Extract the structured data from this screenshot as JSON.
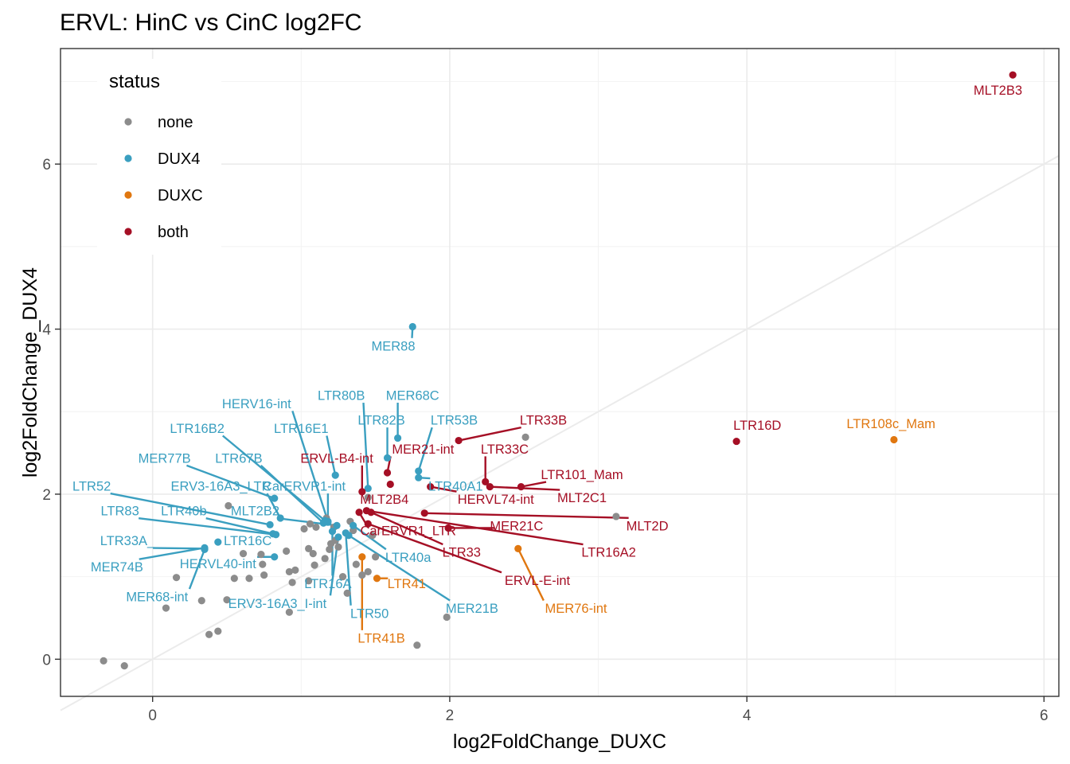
{
  "chart_data": {
    "type": "scatter",
    "title": "ERVL: HinC vs CinC log2FC",
    "xlabel": "log2FoldChange_DUXC",
    "ylabel": "log2FoldChange_DUX4",
    "xlim": [
      -0.62,
      6.1
    ],
    "ylim": [
      -0.45,
      7.4
    ],
    "x_ticks": [
      0,
      2,
      4,
      6
    ],
    "y_ticks": [
      0,
      2,
      4,
      6
    ],
    "x_tick_labels": [
      "0",
      "2",
      "4",
      "6"
    ],
    "y_tick_labels": [
      "0",
      "2",
      "4",
      "6"
    ],
    "grid": true,
    "reference_line": {
      "slope": 1,
      "intercept": 0,
      "color": "#ebebeb"
    },
    "legend": {
      "title": "status",
      "position": "top-left inside",
      "entries": [
        {
          "label": "none",
          "color": "#8c8c8c"
        },
        {
          "label": "DUX4",
          "color": "#3a9fc0"
        },
        {
          "label": "DUXC",
          "color": "#e07710"
        },
        {
          "label": "both",
          "color": "#a50f25"
        }
      ]
    },
    "colors": {
      "none": "#8c8c8c",
      "DUX4": "#3a9fc0",
      "DUXC": "#e07710",
      "both": "#a50f25"
    },
    "points": [
      {
        "x": 5.79,
        "y": 7.08,
        "status": "both",
        "label": "MLT2B3"
      },
      {
        "x": 3.93,
        "y": 2.64,
        "status": "both",
        "label": "LTR16D"
      },
      {
        "x": 2.06,
        "y": 2.65,
        "status": "both",
        "label": "LTR33B"
      },
      {
        "x": 2.24,
        "y": 2.15,
        "status": "both",
        "label": "LTR33C"
      },
      {
        "x": 2.48,
        "y": 2.09,
        "status": "both",
        "label": "LTR101_Mam"
      },
      {
        "x": 2.27,
        "y": 2.09,
        "status": "both",
        "label": "MLT2C1"
      },
      {
        "x": 1.87,
        "y": 2.09,
        "status": "both",
        "label": "HERVL74-int"
      },
      {
        "x": 1.58,
        "y": 2.26,
        "status": "both",
        "label": "MER21-int"
      },
      {
        "x": 1.6,
        "y": 2.12,
        "status": "both",
        "label": "MLT2B4"
      },
      {
        "x": 1.41,
        "y": 2.03,
        "status": "both",
        "label": "ERVL-B4-int"
      },
      {
        "x": 1.83,
        "y": 1.77,
        "status": "both",
        "label": "MLT2D"
      },
      {
        "x": 1.99,
        "y": 1.59,
        "status": "both",
        "label": "MER21C"
      },
      {
        "x": 1.44,
        "y": 1.8,
        "status": "both",
        "label": "LTR16A2"
      },
      {
        "x": 1.47,
        "y": 1.78,
        "status": "both",
        "label": "LTR33"
      },
      {
        "x": 1.45,
        "y": 1.64,
        "status": "both",
        "label": "ERVL-E-int"
      },
      {
        "x": 1.39,
        "y": 1.78,
        "status": "both",
        "label": "CarERVR1_LTR"
      },
      {
        "x": 1.75,
        "y": 4.03,
        "status": "DUX4",
        "label": "MER88"
      },
      {
        "x": 1.65,
        "y": 2.68,
        "status": "DUX4",
        "label": "MER68C"
      },
      {
        "x": 1.58,
        "y": 2.44,
        "status": "DUX4",
        "label": "LTR82B"
      },
      {
        "x": 1.79,
        "y": 2.28,
        "status": "DUX4",
        "label": "LTR53B"
      },
      {
        "x": 1.79,
        "y": 2.2,
        "status": "DUX4",
        "label": "LTR40A1"
      },
      {
        "x": 1.45,
        "y": 2.07,
        "status": "DUX4",
        "label": "LTR80B"
      },
      {
        "x": 1.23,
        "y": 2.23,
        "status": "DUX4",
        "label": "LTR16E1"
      },
      {
        "x": 1.18,
        "y": 1.67,
        "status": "DUX4",
        "label": "HERV16-int"
      },
      {
        "x": 1.16,
        "y": 1.68,
        "status": "DUX4",
        "label": "LTR16B2"
      },
      {
        "x": 1.15,
        "y": 1.65,
        "status": "DUX4",
        "label": "LTR67B"
      },
      {
        "x": 0.82,
        "y": 1.95,
        "status": "DUX4",
        "label": "MER77B"
      },
      {
        "x": 0.86,
        "y": 1.71,
        "status": "DUX4",
        "label": "ERV3-16A3_LTR"
      },
      {
        "x": 1.18,
        "y": 1.66,
        "status": "DUX4",
        "label": "CarERVR1-int"
      },
      {
        "x": 0.79,
        "y": 1.63,
        "status": "DUX4",
        "label": "LTR52"
      },
      {
        "x": 0.83,
        "y": 1.51,
        "status": "DUX4",
        "label": "LTR83"
      },
      {
        "x": 0.81,
        "y": 1.52,
        "status": "DUX4",
        "label": "LTR40b"
      },
      {
        "x": 1.24,
        "y": 1.62,
        "status": "DUX4",
        "label": "MLT2B2"
      },
      {
        "x": 0.44,
        "y": 1.42,
        "status": "DUX4",
        "label": "LTR16C"
      },
      {
        "x": 0.35,
        "y": 1.34,
        "status": "DUX4",
        "label": "LTR33A_"
      },
      {
        "x": 0.35,
        "y": 1.35,
        "status": "DUX4",
        "label": "MER74B"
      },
      {
        "x": 0.82,
        "y": 1.24,
        "status": "DUX4",
        "label": "HERVL40-int"
      },
      {
        "x": 1.21,
        "y": 1.55,
        "status": "DUX4",
        "label": "LTR16A"
      },
      {
        "x": 1.35,
        "y": 1.62,
        "status": "DUX4",
        "label": "LTR40a"
      },
      {
        "x": 1.25,
        "y": 1.48,
        "status": "DUX4",
        "label": "ERV3-16A3_I-int"
      },
      {
        "x": 1.3,
        "y": 1.53,
        "status": "DUX4",
        "label": "LTR50"
      },
      {
        "x": 1.32,
        "y": 1.5,
        "status": "DUX4",
        "label": "MER21B"
      },
      {
        "x": 0.35,
        "y": 1.33,
        "status": "DUX4",
        "label": "MER68-int"
      },
      {
        "x": 4.99,
        "y": 2.66,
        "status": "DUXC",
        "label": "LTR108c_Mam"
      },
      {
        "x": 2.46,
        "y": 1.34,
        "status": "DUXC",
        "label": "MER76-int"
      },
      {
        "x": 1.51,
        "y": 0.98,
        "status": "DUXC",
        "label": "LTR41"
      },
      {
        "x": 1.41,
        "y": 1.24,
        "status": "DUXC",
        "label": "LTR41B"
      },
      {
        "x": 2.51,
        "y": 2.69,
        "status": "none"
      },
      {
        "x": 3.12,
        "y": 1.73,
        "status": "none"
      },
      {
        "x": 1.98,
        "y": 0.51,
        "status": "none"
      },
      {
        "x": 1.78,
        "y": 0.17,
        "status": "none"
      },
      {
        "x": -0.33,
        "y": -0.02,
        "status": "none"
      },
      {
        "x": -0.19,
        "y": -0.08,
        "status": "none"
      },
      {
        "x": 0.09,
        "y": 0.62,
        "status": "none"
      },
      {
        "x": 0.16,
        "y": 0.99,
        "status": "none"
      },
      {
        "x": 0.33,
        "y": 0.71,
        "status": "none"
      },
      {
        "x": 0.38,
        "y": 0.3,
        "status": "none"
      },
      {
        "x": 0.44,
        "y": 0.34,
        "status": "none"
      },
      {
        "x": 0.5,
        "y": 0.72,
        "status": "none"
      },
      {
        "x": 0.55,
        "y": 0.98,
        "status": "none"
      },
      {
        "x": 0.65,
        "y": 0.98,
        "status": "none"
      },
      {
        "x": 0.74,
        "y": 1.15,
        "status": "none"
      },
      {
        "x": 0.75,
        "y": 1.02,
        "status": "none"
      },
      {
        "x": 0.73,
        "y": 1.27,
        "status": "none"
      },
      {
        "x": 0.61,
        "y": 1.28,
        "status": "none"
      },
      {
        "x": 0.9,
        "y": 1.31,
        "status": "none"
      },
      {
        "x": 0.92,
        "y": 1.06,
        "status": "none"
      },
      {
        "x": 0.96,
        "y": 1.08,
        "status": "none"
      },
      {
        "x": 0.94,
        "y": 0.93,
        "status": "none"
      },
      {
        "x": 0.92,
        "y": 0.57,
        "status": "none"
      },
      {
        "x": 1.05,
        "y": 1.34,
        "status": "none"
      },
      {
        "x": 1.08,
        "y": 1.28,
        "status": "none"
      },
      {
        "x": 1.09,
        "y": 1.14,
        "status": "none"
      },
      {
        "x": 1.05,
        "y": 0.95,
        "status": "none"
      },
      {
        "x": 1.16,
        "y": 1.22,
        "status": "none"
      },
      {
        "x": 1.19,
        "y": 1.33,
        "status": "none"
      },
      {
        "x": 1.23,
        "y": 1.44,
        "status": "none"
      },
      {
        "x": 1.25,
        "y": 1.36,
        "status": "none"
      },
      {
        "x": 1.28,
        "y": 1.0,
        "status": "none"
      },
      {
        "x": 1.31,
        "y": 0.8,
        "status": "none"
      },
      {
        "x": 1.37,
        "y": 1.15,
        "status": "none"
      },
      {
        "x": 1.45,
        "y": 1.06,
        "status": "none"
      },
      {
        "x": 1.41,
        "y": 1.02,
        "status": "none"
      },
      {
        "x": 1.45,
        "y": 1.96,
        "status": "none"
      },
      {
        "x": 1.48,
        "y": 1.5,
        "status": "none"
      },
      {
        "x": 1.5,
        "y": 1.24,
        "status": "none"
      },
      {
        "x": 1.1,
        "y": 1.6,
        "status": "none"
      },
      {
        "x": 1.02,
        "y": 1.58,
        "status": "none"
      },
      {
        "x": 1.06,
        "y": 1.64,
        "status": "none"
      },
      {
        "x": 0.51,
        "y": 1.86,
        "status": "none"
      },
      {
        "x": 1.22,
        "y": 1.6,
        "status": "none"
      },
      {
        "x": 1.17,
        "y": 1.71,
        "status": "none"
      },
      {
        "x": 1.33,
        "y": 1.67,
        "status": "none"
      },
      {
        "x": 1.2,
        "y": 1.4,
        "status": "none"
      },
      {
        "x": 1.35,
        "y": 1.56,
        "status": "none"
      }
    ],
    "label_positions": [
      {
        "label": "MLT2B3",
        "x": 5.69,
        "y": 6.9
      },
      {
        "label": "LTR16D",
        "x": 4.07,
        "y": 2.84
      },
      {
        "label": "LTR108c_Mam",
        "x": 4.97,
        "y": 2.86
      },
      {
        "label": "MER88",
        "x": 1.62,
        "y": 3.8
      },
      {
        "label": "MER68C",
        "x": 1.75,
        "y": 3.2
      },
      {
        "label": "LTR80B",
        "x": 1.27,
        "y": 3.2
      },
      {
        "label": "HERV16-int",
        "x": 0.7,
        "y": 3.1
      },
      {
        "label": "LTR82B",
        "x": 1.54,
        "y": 2.9
      },
      {
        "label": "LTR53B",
        "x": 2.03,
        "y": 2.9
      },
      {
        "label": "LTR33B",
        "x": 2.63,
        "y": 2.9
      },
      {
        "label": "LTR16B2",
        "x": 0.3,
        "y": 2.8
      },
      {
        "label": "LTR16E1",
        "x": 1.0,
        "y": 2.8
      },
      {
        "label": "MER21-int",
        "x": 1.82,
        "y": 2.55
      },
      {
        "label": "LTR33C",
        "x": 2.37,
        "y": 2.55
      },
      {
        "label": "MER77B",
        "x": 0.08,
        "y": 2.44
      },
      {
        "label": "LTR67B",
        "x": 0.58,
        "y": 2.44
      },
      {
        "label": "ERVL-B4-int",
        "x": 1.24,
        "y": 2.44
      },
      {
        "label": "LTR101_Mam",
        "x": 2.89,
        "y": 2.24
      },
      {
        "label": "LTR40A1",
        "x": 2.04,
        "y": 2.1
      },
      {
        "label": "LTR52",
        "x": -0.41,
        "y": 2.1
      },
      {
        "label": "ERV3-16A3_LTR",
        "x": 0.46,
        "y": 2.1
      },
      {
        "label": "CarERVR1-int",
        "x": 1.02,
        "y": 2.1
      },
      {
        "label": "MLT2C1",
        "x": 2.89,
        "y": 1.96
      },
      {
        "label": "MLT2B4",
        "x": 1.56,
        "y": 1.94
      },
      {
        "label": "HERVL74-int",
        "x": 2.31,
        "y": 1.94
      },
      {
        "label": "LTR83",
        "x": -0.22,
        "y": 1.8
      },
      {
        "label": "LTR40b",
        "x": 0.21,
        "y": 1.8
      },
      {
        "label": "MLT2B2",
        "x": 0.69,
        "y": 1.8
      },
      {
        "label": "MLT2D",
        "x": 3.33,
        "y": 1.62
      },
      {
        "label": "MER21C",
        "x": 2.45,
        "y": 1.62
      },
      {
        "label": "CarERVR1_LTR",
        "x": 1.72,
        "y": 1.56
      },
      {
        "label": "LTR33A_",
        "x": -0.17,
        "y": 1.44
      },
      {
        "label": "LTR16C",
        "x": 0.64,
        "y": 1.44
      },
      {
        "label": "LTR16A2",
        "x": 3.07,
        "y": 1.3
      },
      {
        "label": "LTR33",
        "x": 2.08,
        "y": 1.3
      },
      {
        "label": "LTR40a",
        "x": 1.72,
        "y": 1.24
      },
      {
        "label": "MER74B",
        "x": -0.24,
        "y": 1.12
      },
      {
        "label": "HERVL40-int",
        "x": 0.44,
        "y": 1.16
      },
      {
        "label": "ERVL-E-int",
        "x": 2.59,
        "y": 0.96
      },
      {
        "label": "LTR41",
        "x": 1.71,
        "y": 0.92
      },
      {
        "label": "LTR16A",
        "x": 1.18,
        "y": 0.92
      },
      {
        "label": "MER68-int",
        "x": 0.03,
        "y": 0.76
      },
      {
        "label": "ERV3-16A3_I-int",
        "x": 0.84,
        "y": 0.68
      },
      {
        "label": "MER76-int",
        "x": 2.85,
        "y": 0.62
      },
      {
        "label": "MER21B",
        "x": 2.15,
        "y": 0.62
      },
      {
        "label": "LTR50",
        "x": 1.46,
        "y": 0.56
      },
      {
        "label": "LTR41B",
        "x": 1.54,
        "y": 0.26
      }
    ]
  }
}
